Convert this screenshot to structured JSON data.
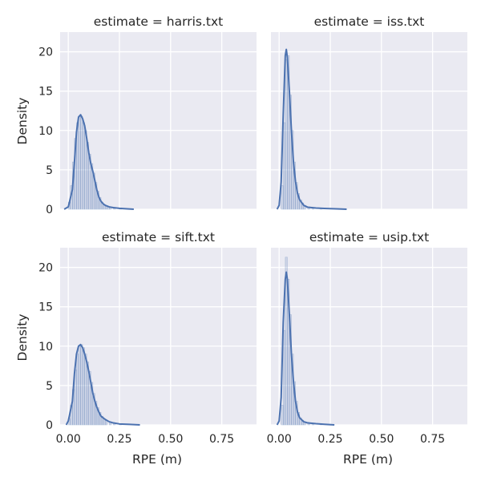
{
  "chart_data": {
    "type": "facet-kde-histogram",
    "grid": true,
    "sharex": true,
    "sharey": true,
    "xlim": [
      -0.04,
      0.92
    ],
    "ylim": [
      0,
      22.5
    ],
    "xticks": [
      0.0,
      0.25,
      0.5,
      0.75
    ],
    "xtick_labels": [
      "0.00",
      "0.25",
      "0.50",
      "0.75"
    ],
    "yticks": [
      0,
      5,
      10,
      15,
      20
    ],
    "ytick_labels": [
      "0",
      "5",
      "10",
      "15",
      "20"
    ],
    "xlabel": "RPE (m)",
    "ylabel": "Density",
    "colors": {
      "line": "#4c72b0",
      "hist": "#4c72b0",
      "background": "#eaeaf2",
      "grid": "#ffffff"
    },
    "panels": [
      {
        "title": "estimate = harris.txt",
        "kde": [
          [
            -0.02,
            0
          ],
          [
            0.0,
            0.3
          ],
          [
            0.02,
            2.5
          ],
          [
            0.03,
            6
          ],
          [
            0.04,
            9.8
          ],
          [
            0.05,
            11.7
          ],
          [
            0.06,
            12.0
          ],
          [
            0.07,
            11.5
          ],
          [
            0.08,
            10.6
          ],
          [
            0.09,
            9.0
          ],
          [
            0.1,
            7.2
          ],
          [
            0.11,
            5.8
          ],
          [
            0.12,
            4.8
          ],
          [
            0.13,
            3.6
          ],
          [
            0.14,
            2.4
          ],
          [
            0.15,
            1.5
          ],
          [
            0.16,
            1.0
          ],
          [
            0.17,
            0.7
          ],
          [
            0.18,
            0.5
          ],
          [
            0.2,
            0.3
          ],
          [
            0.22,
            0.2
          ],
          [
            0.25,
            0.12
          ],
          [
            0.28,
            0.06
          ],
          [
            0.32,
            0
          ]
        ],
        "hist": [
          [
            0.0,
            0.9
          ],
          [
            0.01,
            3
          ],
          [
            0.02,
            6
          ],
          [
            0.03,
            9
          ],
          [
            0.04,
            11
          ],
          [
            0.05,
            11.8
          ],
          [
            0.06,
            11.8
          ],
          [
            0.07,
            11
          ],
          [
            0.08,
            10
          ],
          [
            0.09,
            8.5
          ],
          [
            0.1,
            7
          ],
          [
            0.11,
            5.8
          ],
          [
            0.12,
            4.6
          ],
          [
            0.13,
            3.4
          ],
          [
            0.14,
            2.3
          ],
          [
            0.15,
            1.5
          ],
          [
            0.16,
            0.9
          ],
          [
            0.17,
            0.6
          ],
          [
            0.18,
            0.4
          ],
          [
            0.19,
            0.3
          ],
          [
            0.2,
            0.25
          ],
          [
            0.22,
            0.15
          ],
          [
            0.25,
            0.1
          ]
        ]
      },
      {
        "title": "estimate = iss.txt",
        "kde": [
          [
            -0.01,
            0
          ],
          [
            0.0,
            0.5
          ],
          [
            0.01,
            3.5
          ],
          [
            0.02,
            12
          ],
          [
            0.03,
            19.5
          ],
          [
            0.035,
            20.3
          ],
          [
            0.04,
            19.3
          ],
          [
            0.05,
            15
          ],
          [
            0.06,
            10
          ],
          [
            0.07,
            6
          ],
          [
            0.08,
            3.5
          ],
          [
            0.09,
            2
          ],
          [
            0.1,
            1.2
          ],
          [
            0.12,
            0.5
          ],
          [
            0.14,
            0.25
          ],
          [
            0.18,
            0.15
          ],
          [
            0.22,
            0.1
          ],
          [
            0.28,
            0.05
          ],
          [
            0.33,
            0
          ]
        ],
        "hist": [
          [
            0.01,
            3
          ],
          [
            0.02,
            11
          ],
          [
            0.03,
            19
          ],
          [
            0.04,
            19.5
          ],
          [
            0.05,
            14.5
          ],
          [
            0.06,
            10
          ],
          [
            0.07,
            6
          ],
          [
            0.08,
            3.4
          ],
          [
            0.09,
            2
          ],
          [
            0.1,
            1.2
          ],
          [
            0.11,
            0.8
          ],
          [
            0.12,
            0.5
          ],
          [
            0.14,
            0.3
          ],
          [
            0.16,
            0.2
          ],
          [
            0.2,
            0.12
          ]
        ]
      },
      {
        "title": "estimate = sift.txt",
        "kde": [
          [
            -0.01,
            0
          ],
          [
            0.0,
            0.5
          ],
          [
            0.02,
            3
          ],
          [
            0.03,
            6.5
          ],
          [
            0.04,
            9.0
          ],
          [
            0.05,
            10.0
          ],
          [
            0.06,
            10.2
          ],
          [
            0.07,
            9.8
          ],
          [
            0.08,
            9.0
          ],
          [
            0.09,
            8.0
          ],
          [
            0.1,
            6.8
          ],
          [
            0.11,
            5.4
          ],
          [
            0.12,
            4.0
          ],
          [
            0.13,
            3.0
          ],
          [
            0.14,
            2.2
          ],
          [
            0.15,
            1.6
          ],
          [
            0.16,
            1.1
          ],
          [
            0.18,
            0.7
          ],
          [
            0.2,
            0.4
          ],
          [
            0.22,
            0.25
          ],
          [
            0.25,
            0.12
          ],
          [
            0.3,
            0.06
          ],
          [
            0.35,
            0
          ]
        ],
        "hist": [
          [
            0.0,
            0.8
          ],
          [
            0.01,
            2.5
          ],
          [
            0.02,
            4.5
          ],
          [
            0.03,
            7
          ],
          [
            0.04,
            9
          ],
          [
            0.05,
            10
          ],
          [
            0.06,
            10.2
          ],
          [
            0.07,
            9.8
          ],
          [
            0.08,
            9
          ],
          [
            0.09,
            8
          ],
          [
            0.1,
            6.8
          ],
          [
            0.11,
            5.4
          ],
          [
            0.12,
            4
          ],
          [
            0.13,
            3
          ],
          [
            0.14,
            2.2
          ],
          [
            0.15,
            1.6
          ],
          [
            0.16,
            1.1
          ],
          [
            0.17,
            0.8
          ],
          [
            0.18,
            0.6
          ],
          [
            0.2,
            0.4
          ],
          [
            0.22,
            0.25
          ],
          [
            0.25,
            0.12
          ]
        ]
      },
      {
        "title": "estimate = usip.txt",
        "kde": [
          [
            -0.01,
            0
          ],
          [
            0.0,
            0.5
          ],
          [
            0.01,
            3.5
          ],
          [
            0.02,
            13
          ],
          [
            0.03,
            18.5
          ],
          [
            0.035,
            19.4
          ],
          [
            0.04,
            18.5
          ],
          [
            0.05,
            14
          ],
          [
            0.06,
            9
          ],
          [
            0.07,
            5.5
          ],
          [
            0.08,
            3.0
          ],
          [
            0.09,
            1.6
          ],
          [
            0.1,
            0.9
          ],
          [
            0.12,
            0.4
          ],
          [
            0.14,
            0.25
          ],
          [
            0.18,
            0.15
          ],
          [
            0.22,
            0.08
          ],
          [
            0.27,
            0
          ]
        ],
        "hist": [
          [
            0.01,
            2.5
          ],
          [
            0.02,
            12
          ],
          [
            0.03,
            21.3
          ],
          [
            0.04,
            18.5
          ],
          [
            0.05,
            14
          ],
          [
            0.06,
            9
          ],
          [
            0.07,
            5.5
          ],
          [
            0.08,
            3
          ],
          [
            0.09,
            1.6
          ],
          [
            0.1,
            0.9
          ],
          [
            0.11,
            0.6
          ],
          [
            0.12,
            0.4
          ],
          [
            0.14,
            0.25
          ],
          [
            0.16,
            0.15
          ],
          [
            0.2,
            0.1
          ]
        ]
      }
    ]
  }
}
